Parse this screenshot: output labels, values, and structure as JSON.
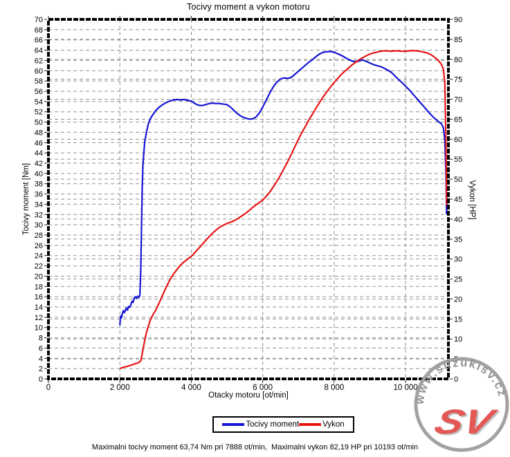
{
  "title": "Tocivy moment a vykon motoru",
  "axes": {
    "x": {
      "label": "Otacky motoru [ot/min]",
      "min": 0,
      "max": 11200,
      "tick_values": [
        0,
        2000,
        4000,
        6000,
        8000,
        10000
      ],
      "tick_labels": [
        "0",
        "2 000",
        "4 000",
        "6 000",
        "8 000",
        "10 000"
      ]
    },
    "y_left": {
      "label": "Tocivy moment [Nm]",
      "min": 0,
      "max": 70,
      "tick_step": 2,
      "tick_values": [
        0,
        2,
        4,
        6,
        8,
        10,
        12,
        14,
        16,
        18,
        20,
        22,
        24,
        26,
        28,
        30,
        32,
        34,
        36,
        38,
        40,
        42,
        44,
        46,
        48,
        50,
        52,
        54,
        56,
        58,
        60,
        62,
        64,
        66,
        68,
        70
      ],
      "tick_labels": [
        "0",
        "2",
        "4",
        "6",
        "8",
        "10",
        "12",
        "14",
        "16",
        "18",
        "20",
        "22",
        "24",
        "26",
        "28",
        "30",
        "32",
        "34",
        "36",
        "38",
        "40",
        "42",
        "44",
        "46",
        "48",
        "50",
        "52",
        "54",
        "56",
        "58",
        "60",
        "62",
        "64",
        "66",
        "68",
        "70"
      ]
    },
    "y_right": {
      "label": "Vykon [HP]",
      "min": 0,
      "max": 90,
      "tick_step": 5,
      "tick_values": [
        0,
        5,
        10,
        15,
        20,
        25,
        30,
        35,
        40,
        45,
        50,
        55,
        60,
        65,
        70,
        75,
        80,
        85,
        90
      ],
      "tick_labels": [
        "0",
        "5",
        "10",
        "15",
        "20",
        "25",
        "30",
        "35",
        "40",
        "45",
        "50",
        "55",
        "60",
        "65",
        "70",
        "75",
        "80",
        "85",
        "90"
      ]
    }
  },
  "legend": [
    {
      "label": "Tocivy moment",
      "color": "#1414d6"
    },
    {
      "label": "Vykon",
      "color": "#e81414"
    }
  ],
  "footnote": "Maximalni tocivy moment 63,74 Nm pri 7888 ot/min,  Maximalni vykon 82,19 HP pri 10193 ot/min",
  "watermark": {
    "text": "www.suzukisv.cz",
    "logo": "SV",
    "ring_color": "#9e9e9e",
    "text_color": "#8c8c8c",
    "logo_color": "#e2504c"
  },
  "colors": {
    "grid": "#8f8f8f",
    "border": "#000000",
    "background": "#ffffff"
  },
  "chart_data": {
    "type": "line",
    "title": "Tocivy moment a vykon motoru",
    "xlabel": "Otacky motoru [ot/min]",
    "ylabel_left": "Tocivy moment [Nm]",
    "ylabel_right": "Vykon [HP]",
    "xlim": [
      0,
      11200
    ],
    "ylim_left": [
      0,
      70
    ],
    "ylim_right": [
      0,
      90
    ],
    "grid": true,
    "legend_position": "bottom",
    "max_torque": {
      "value_nm": 63.74,
      "rpm": 7888
    },
    "max_power": {
      "value_hp": 82.19,
      "rpm": 10193
    },
    "series": [
      {
        "id": "torque",
        "name": "Tocivy moment",
        "axis": "left",
        "unit": "Nm",
        "color": "#1414d6",
        "points": [
          [
            2000,
            10.4
          ],
          [
            2020,
            12.2
          ],
          [
            2045,
            11.9
          ],
          [
            2070,
            12.7
          ],
          [
            2100,
            13.3
          ],
          [
            2125,
            12.9
          ],
          [
            2150,
            13.2
          ],
          [
            2180,
            13.8
          ],
          [
            2210,
            13.4
          ],
          [
            2240,
            14.1
          ],
          [
            2270,
            13.9
          ],
          [
            2300,
            14.3
          ],
          [
            2340,
            15.1
          ],
          [
            2370,
            14.9
          ],
          [
            2400,
            15.7
          ],
          [
            2430,
            16.0
          ],
          [
            2460,
            15.7
          ],
          [
            2500,
            16.1
          ],
          [
            2530,
            15.8
          ],
          [
            2560,
            16.3
          ],
          [
            2585,
            21.0
          ],
          [
            2605,
            29.0
          ],
          [
            2625,
            37.0
          ],
          [
            2645,
            41.5
          ],
          [
            2670,
            44.0
          ],
          [
            2700,
            46.3
          ],
          [
            2750,
            48.2
          ],
          [
            2800,
            49.7
          ],
          [
            2850,
            50.6
          ],
          [
            2900,
            51.2
          ],
          [
            3000,
            52.2
          ],
          [
            3100,
            52.9
          ],
          [
            3200,
            53.4
          ],
          [
            3300,
            53.8
          ],
          [
            3400,
            54.1
          ],
          [
            3500,
            54.3
          ],
          [
            3600,
            54.4
          ],
          [
            3700,
            54.3
          ],
          [
            3800,
            54.4
          ],
          [
            3900,
            54.2
          ],
          [
            4000,
            54.1
          ],
          [
            4100,
            53.6
          ],
          [
            4200,
            53.3
          ],
          [
            4300,
            53.2
          ],
          [
            4400,
            53.4
          ],
          [
            4500,
            53.6
          ],
          [
            4600,
            53.7
          ],
          [
            4700,
            53.6
          ],
          [
            4800,
            53.6
          ],
          [
            4900,
            53.5
          ],
          [
            5000,
            53.4
          ],
          [
            5100,
            52.9
          ],
          [
            5200,
            52.2
          ],
          [
            5300,
            51.6
          ],
          [
            5400,
            51.1
          ],
          [
            5500,
            50.8
          ],
          [
            5600,
            50.6
          ],
          [
            5700,
            50.6
          ],
          [
            5800,
            50.9
          ],
          [
            5900,
            51.7
          ],
          [
            6000,
            52.9
          ],
          [
            6100,
            54.3
          ],
          [
            6200,
            55.7
          ],
          [
            6300,
            56.9
          ],
          [
            6400,
            57.8
          ],
          [
            6500,
            58.4
          ],
          [
            6600,
            58.6
          ],
          [
            6700,
            58.5
          ],
          [
            6800,
            58.7
          ],
          [
            6900,
            59.3
          ],
          [
            7000,
            59.9
          ],
          [
            7100,
            60.5
          ],
          [
            7200,
            61.1
          ],
          [
            7300,
            61.7
          ],
          [
            7400,
            62.2
          ],
          [
            7500,
            62.8
          ],
          [
            7600,
            63.3
          ],
          [
            7700,
            63.6
          ],
          [
            7800,
            63.7
          ],
          [
            7888,
            63.74
          ],
          [
            8000,
            63.6
          ],
          [
            8100,
            63.3
          ],
          [
            8200,
            63.0
          ],
          [
            8300,
            62.6
          ],
          [
            8400,
            62.2
          ],
          [
            8500,
            61.9
          ],
          [
            8600,
            61.7
          ],
          [
            8700,
            61.9
          ],
          [
            8800,
            62.1
          ],
          [
            8900,
            61.8
          ],
          [
            9000,
            61.5
          ],
          [
            9100,
            61.2
          ],
          [
            9200,
            61.0
          ],
          [
            9300,
            60.8
          ],
          [
            9400,
            60.5
          ],
          [
            9500,
            60.1
          ],
          [
            9600,
            59.7
          ],
          [
            9700,
            59.0
          ],
          [
            9800,
            58.3
          ],
          [
            9900,
            57.7
          ],
          [
            10000,
            57.0
          ],
          [
            10100,
            56.3
          ],
          [
            10200,
            55.5
          ],
          [
            10300,
            54.7
          ],
          [
            10400,
            53.9
          ],
          [
            10500,
            53.1
          ],
          [
            10600,
            52.3
          ],
          [
            10700,
            51.5
          ],
          [
            10800,
            50.8
          ],
          [
            10900,
            50.2
          ],
          [
            11000,
            49.7
          ],
          [
            11060,
            48.9
          ],
          [
            11100,
            46.5
          ],
          [
            11130,
            40.0
          ],
          [
            11150,
            32.0
          ]
        ]
      },
      {
        "id": "power",
        "name": "Vykon",
        "axis": "right",
        "unit": "HP",
        "color": "#e81414",
        "points": [
          [
            2000,
            2.6
          ],
          [
            2100,
            2.9
          ],
          [
            2200,
            3.1
          ],
          [
            2300,
            3.4
          ],
          [
            2400,
            3.7
          ],
          [
            2500,
            4.0
          ],
          [
            2560,
            4.3
          ],
          [
            2590,
            4.6
          ],
          [
            2620,
            6.0
          ],
          [
            2660,
            8.0
          ],
          [
            2700,
            9.8
          ],
          [
            2750,
            11.8
          ],
          [
            2800,
            13.2
          ],
          [
            2850,
            14.6
          ],
          [
            2900,
            15.6
          ],
          [
            2950,
            16.4
          ],
          [
            3000,
            17.1
          ],
          [
            3100,
            19.0
          ],
          [
            3200,
            21.0
          ],
          [
            3300,
            23.0
          ],
          [
            3400,
            24.8
          ],
          [
            3500,
            26.2
          ],
          [
            3600,
            27.4
          ],
          [
            3700,
            28.5
          ],
          [
            3800,
            29.3
          ],
          [
            3900,
            30.0
          ],
          [
            4000,
            30.7
          ],
          [
            4100,
            31.6
          ],
          [
            4200,
            32.6
          ],
          [
            4300,
            33.6
          ],
          [
            4400,
            34.6
          ],
          [
            4500,
            35.6
          ],
          [
            4600,
            36.5
          ],
          [
            4700,
            37.3
          ],
          [
            4800,
            38.0
          ],
          [
            4900,
            38.5
          ],
          [
            5000,
            38.9
          ],
          [
            5100,
            39.2
          ],
          [
            5200,
            39.6
          ],
          [
            5300,
            40.1
          ],
          [
            5400,
            40.7
          ],
          [
            5500,
            41.3
          ],
          [
            5600,
            42.0
          ],
          [
            5700,
            42.8
          ],
          [
            5800,
            43.5
          ],
          [
            5900,
            44.1
          ],
          [
            6000,
            44.8
          ],
          [
            6100,
            45.7
          ],
          [
            6200,
            46.8
          ],
          [
            6300,
            48.1
          ],
          [
            6400,
            49.5
          ],
          [
            6500,
            51.0
          ],
          [
            6600,
            52.7
          ],
          [
            6700,
            54.4
          ],
          [
            6800,
            56.2
          ],
          [
            6900,
            58.1
          ],
          [
            7000,
            60.0
          ],
          [
            7100,
            61.7
          ],
          [
            7200,
            63.3
          ],
          [
            7300,
            64.9
          ],
          [
            7400,
            66.4
          ],
          [
            7500,
            67.9
          ],
          [
            7600,
            69.3
          ],
          [
            7700,
            70.7
          ],
          [
            7800,
            71.9
          ],
          [
            7900,
            73.1
          ],
          [
            8000,
            74.2
          ],
          [
            8100,
            75.2
          ],
          [
            8200,
            76.2
          ],
          [
            8300,
            77.0
          ],
          [
            8400,
            77.8
          ],
          [
            8500,
            78.6
          ],
          [
            8600,
            79.2
          ],
          [
            8700,
            79.9
          ],
          [
            8800,
            80.4
          ],
          [
            8900,
            80.9
          ],
          [
            9000,
            81.3
          ],
          [
            9100,
            81.6
          ],
          [
            9200,
            81.8
          ],
          [
            9300,
            82.0
          ],
          [
            9400,
            82.1
          ],
          [
            9500,
            82.1
          ],
          [
            9600,
            82.0
          ],
          [
            9700,
            82.1
          ],
          [
            9800,
            82.1
          ],
          [
            9900,
            82.0
          ],
          [
            10000,
            82.0
          ],
          [
            10100,
            82.1
          ],
          [
            10193,
            82.19
          ],
          [
            10300,
            82.1
          ],
          [
            10400,
            82.0
          ],
          [
            10500,
            81.8
          ],
          [
            10600,
            81.6
          ],
          [
            10700,
            81.2
          ],
          [
            10800,
            80.6
          ],
          [
            10900,
            79.9
          ],
          [
            11000,
            78.8
          ],
          [
            11060,
            77.5
          ],
          [
            11100,
            74.0
          ],
          [
            11130,
            60.0
          ],
          [
            11150,
            43.5
          ]
        ]
      }
    ]
  }
}
